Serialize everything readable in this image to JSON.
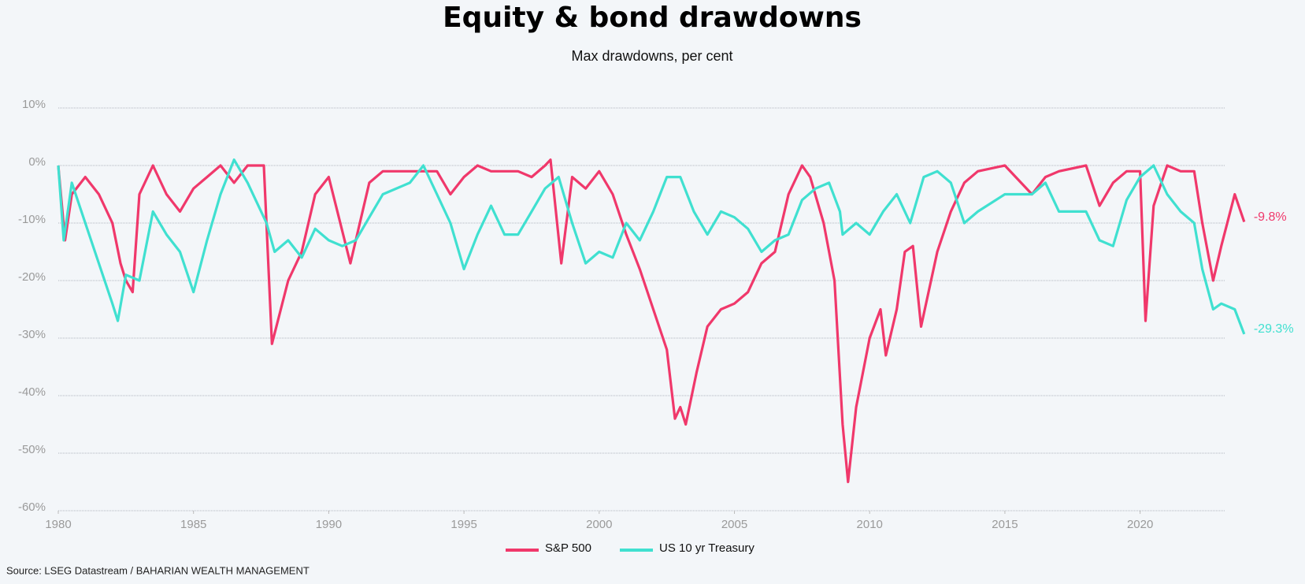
{
  "chart_data": {
    "type": "line",
    "title": "Equity & bond drawdowns",
    "subtitle": "Max drawdowns, per cent",
    "source": "Source: LSEG Datastream / BAHARIAN WEALTH MANAGEMENT",
    "xlim": [
      1980,
      2024
    ],
    "xticks": [
      1980,
      1985,
      1990,
      1995,
      2000,
      2005,
      2010,
      2015,
      2020
    ],
    "ylim": [
      -60,
      10
    ],
    "yticks": [
      {
        "value": 10,
        "label": "10%"
      },
      {
        "value": 0,
        "label": "0%"
      },
      {
        "value": -10,
        "label": "-10%"
      },
      {
        "value": -20,
        "label": "-20%"
      },
      {
        "value": -30,
        "label": "-30%"
      },
      {
        "value": -40,
        "label": "-40%"
      },
      {
        "value": -50,
        "label": "-50%"
      },
      {
        "value": -60,
        "label": "-60%"
      }
    ],
    "grid": true,
    "legend": "bottom",
    "series": [
      {
        "name": "S&P 500",
        "color": "#f0386b",
        "x": [
          1980,
          1980.25,
          1980.5,
          1981,
          1981.5,
          1982,
          1982.3,
          1982.5,
          1982.75,
          1983,
          1983.5,
          1984,
          1984.5,
          1985,
          1985.5,
          1986,
          1986.5,
          1987,
          1987.6,
          1987.9,
          1988.5,
          1989,
          1989.5,
          1990,
          1990.8,
          1991.5,
          1992,
          1993,
          1994,
          1994.5,
          1995,
          1995.5,
          1996,
          1997,
          1997.5,
          1998,
          1998.2,
          1998.6,
          1999,
          1999.5,
          2000,
          2000.5,
          2001,
          2001.5,
          2002,
          2002.5,
          2002.8,
          2003,
          2003.2,
          2003.6,
          2004,
          2004.5,
          2005,
          2005.5,
          2006,
          2006.5,
          2007,
          2007.5,
          2007.8,
          2008.3,
          2008.7,
          2009,
          2009.2,
          2009.5,
          2010,
          2010.4,
          2010.6,
          2011,
          2011.3,
          2011.6,
          2011.9,
          2012.5,
          2013,
          2013.5,
          2014,
          2015,
          2016,
          2016.5,
          2017,
          2018,
          2018.5,
          2019,
          2019.5,
          2020,
          2020.2,
          2020.5,
          2021,
          2021.5,
          2022,
          2022.3,
          2022.7,
          2023,
          2023.5,
          2023.85
        ],
        "values": [
          0,
          -13,
          -5,
          -2,
          -5,
          -10,
          -17,
          -20,
          -22,
          -5,
          0,
          -5,
          -8,
          -4,
          -2,
          0,
          -3,
          0,
          0,
          -31,
          -20,
          -15,
          -5,
          -2,
          -17,
          -3,
          -1,
          -1,
          -1,
          -5,
          -2,
          0,
          -1,
          -1,
          -2,
          0,
          1,
          -17,
          -2,
          -4,
          -1,
          -5,
          -12,
          -18,
          -25,
          -32,
          -44,
          -42,
          -45,
          -36,
          -28,
          -25,
          -24,
          -22,
          -17,
          -15,
          -5,
          0,
          -2,
          -10,
          -20,
          -45,
          -55,
          -42,
          -30,
          -25,
          -33,
          -25,
          -15,
          -14,
          -28,
          -15,
          -8,
          -3,
          -1,
          0,
          -5,
          -2,
          -1,
          0,
          -7,
          -3,
          -1,
          -1,
          -27,
          -7,
          0,
          -1,
          -1,
          -10,
          -20,
          -14,
          -5,
          -9.8
        ],
        "value_labels": [
          null,
          null,
          null,
          null,
          null,
          null,
          null,
          null,
          null,
          null,
          null,
          null,
          null,
          null,
          null,
          null,
          null,
          null,
          null,
          null,
          null,
          null,
          null,
          null,
          null,
          null,
          null,
          null,
          null,
          null,
          null,
          null,
          null,
          null,
          null,
          null,
          null,
          null,
          null,
          null,
          null,
          null,
          null,
          null,
          null,
          null,
          null,
          null,
          null,
          null,
          null,
          null,
          null,
          null,
          null,
          null,
          null,
          null,
          null,
          null,
          null,
          null,
          null,
          null,
          null,
          null,
          null,
          null,
          null,
          null,
          null,
          null,
          null,
          null,
          null,
          null,
          null,
          null,
          null,
          null,
          null,
          null,
          null,
          null,
          null,
          null,
          null,
          null,
          null,
          null,
          null,
          null,
          null,
          "-9.8%"
        ]
      },
      {
        "name": "US 10 yr Treasury",
        "color": "#40e0d0",
        "x": [
          1980,
          1980.2,
          1980.5,
          1981,
          1981.5,
          1982,
          1982.2,
          1982.5,
          1983,
          1983.5,
          1984,
          1984.5,
          1985,
          1985.5,
          1986,
          1986.5,
          1987,
          1987.7,
          1988,
          1988.5,
          1989,
          1989.5,
          1990,
          1990.5,
          1991,
          1991.5,
          1992,
          1993,
          1993.5,
          1994,
          1994.5,
          1995,
          1995.5,
          1996,
          1996.5,
          1997,
          1997.5,
          1998,
          1998.5,
          1999,
          1999.5,
          2000,
          2000.5,
          2001,
          2001.5,
          2002,
          2002.5,
          2003,
          2003.5,
          2004,
          2004.5,
          2005,
          2005.5,
          2006,
          2006.5,
          2007,
          2007.5,
          2008,
          2008.5,
          2008.9,
          2009,
          2009.5,
          2010,
          2010.5,
          2011,
          2011.5,
          2012,
          2012.5,
          2013,
          2013.5,
          2014,
          2015,
          2016,
          2016.5,
          2017,
          2018,
          2018.5,
          2019,
          2019.5,
          2020,
          2020.5,
          2021,
          2021.5,
          2022,
          2022.3,
          2022.7,
          2023,
          2023.5,
          2023.85
        ],
        "values": [
          0,
          -13,
          -3,
          -10,
          -17,
          -24,
          -27,
          -19,
          -20,
          -8,
          -12,
          -15,
          -22,
          -13,
          -5,
          1,
          -3,
          -10,
          -15,
          -13,
          -16,
          -11,
          -13,
          -14,
          -13,
          -9,
          -5,
          -3,
          0,
          -5,
          -10,
          -18,
          -12,
          -7,
          -12,
          -12,
          -8,
          -4,
          -2,
          -10,
          -17,
          -15,
          -16,
          -10,
          -13,
          -8,
          -2,
          -2,
          -8,
          -12,
          -8,
          -9,
          -11,
          -15,
          -13,
          -12,
          -6,
          -4,
          -3,
          -8,
          -12,
          -10,
          -12,
          -8,
          -5,
          -10,
          -2,
          -1,
          -3,
          -10,
          -8,
          -5,
          -5,
          -3,
          -8,
          -8,
          -13,
          -14,
          -6,
          -2,
          0,
          -5,
          -8,
          -10,
          -18,
          -25,
          -24,
          -25,
          -29.3
        ],
        "value_labels": [
          null,
          null,
          null,
          null,
          null,
          null,
          null,
          null,
          null,
          null,
          null,
          null,
          null,
          null,
          null,
          null,
          null,
          null,
          null,
          null,
          null,
          null,
          null,
          null,
          null,
          null,
          null,
          null,
          null,
          null,
          null,
          null,
          null,
          null,
          null,
          null,
          null,
          null,
          null,
          null,
          null,
          null,
          null,
          null,
          null,
          null,
          null,
          null,
          null,
          null,
          null,
          null,
          null,
          null,
          null,
          null,
          null,
          null,
          null,
          null,
          null,
          null,
          null,
          null,
          null,
          null,
          null,
          null,
          null,
          null,
          null,
          null,
          null,
          null,
          null,
          null,
          null,
          null,
          null,
          null,
          null,
          null,
          null,
          null,
          null,
          null,
          null,
          null,
          "-29.3%"
        ]
      }
    ]
  }
}
